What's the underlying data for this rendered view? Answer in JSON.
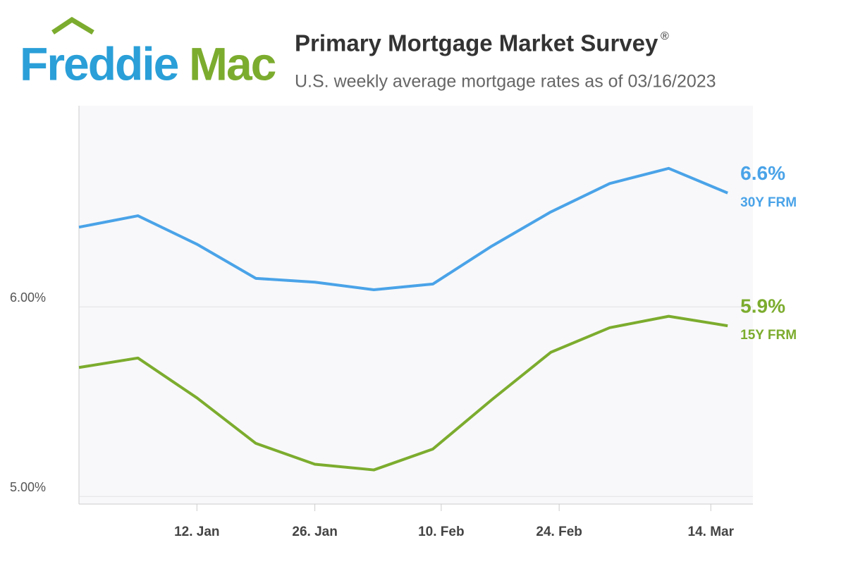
{
  "logo": {
    "parts": [
      "Freddie",
      "Mac"
    ]
  },
  "chart_data": {
    "type": "line",
    "title": "Primary Mortgage Market Survey",
    "title_mark": "®",
    "subtitle": "U.S. weekly average mortgage rates as of 03/16/2023",
    "x": [
      -3,
      4,
      11,
      18,
      25,
      32,
      39,
      46,
      53,
      60,
      67,
      74
    ],
    "xlim": [
      -3,
      77
    ],
    "xticks": [
      {
        "value": 11,
        "label": "12. Jan"
      },
      {
        "value": 25,
        "label": "26. Jan"
      },
      {
        "value": 40,
        "label": "10. Feb"
      },
      {
        "value": 54,
        "label": "24. Feb"
      },
      {
        "value": 72,
        "label": "14. Mar"
      }
    ],
    "ylim": [
      4.96,
      7.06
    ],
    "yticks": [
      {
        "value": 5,
        "label": "5.00%"
      },
      {
        "value": 6,
        "label": "6.00%"
      }
    ],
    "grid": true,
    "series": [
      {
        "name": "30Y FRM",
        "color": "#4aa3e8",
        "values": [
          6.42,
          6.48,
          6.33,
          6.15,
          6.13,
          6.09,
          6.12,
          6.32,
          6.5,
          6.65,
          6.73,
          6.6
        ],
        "value_labels": [
          null,
          null,
          null,
          null,
          null,
          null,
          null,
          null,
          null,
          null,
          null,
          "6.6%"
        ]
      },
      {
        "name": "15Y FRM",
        "color": "#7cac2e",
        "values": [
          5.68,
          5.73,
          5.52,
          5.28,
          5.17,
          5.14,
          5.25,
          5.51,
          5.76,
          5.89,
          5.95,
          5.9
        ],
        "value_labels": [
          null,
          null,
          null,
          null,
          null,
          null,
          null,
          null,
          null,
          null,
          null,
          "5.9%"
        ]
      }
    ]
  }
}
